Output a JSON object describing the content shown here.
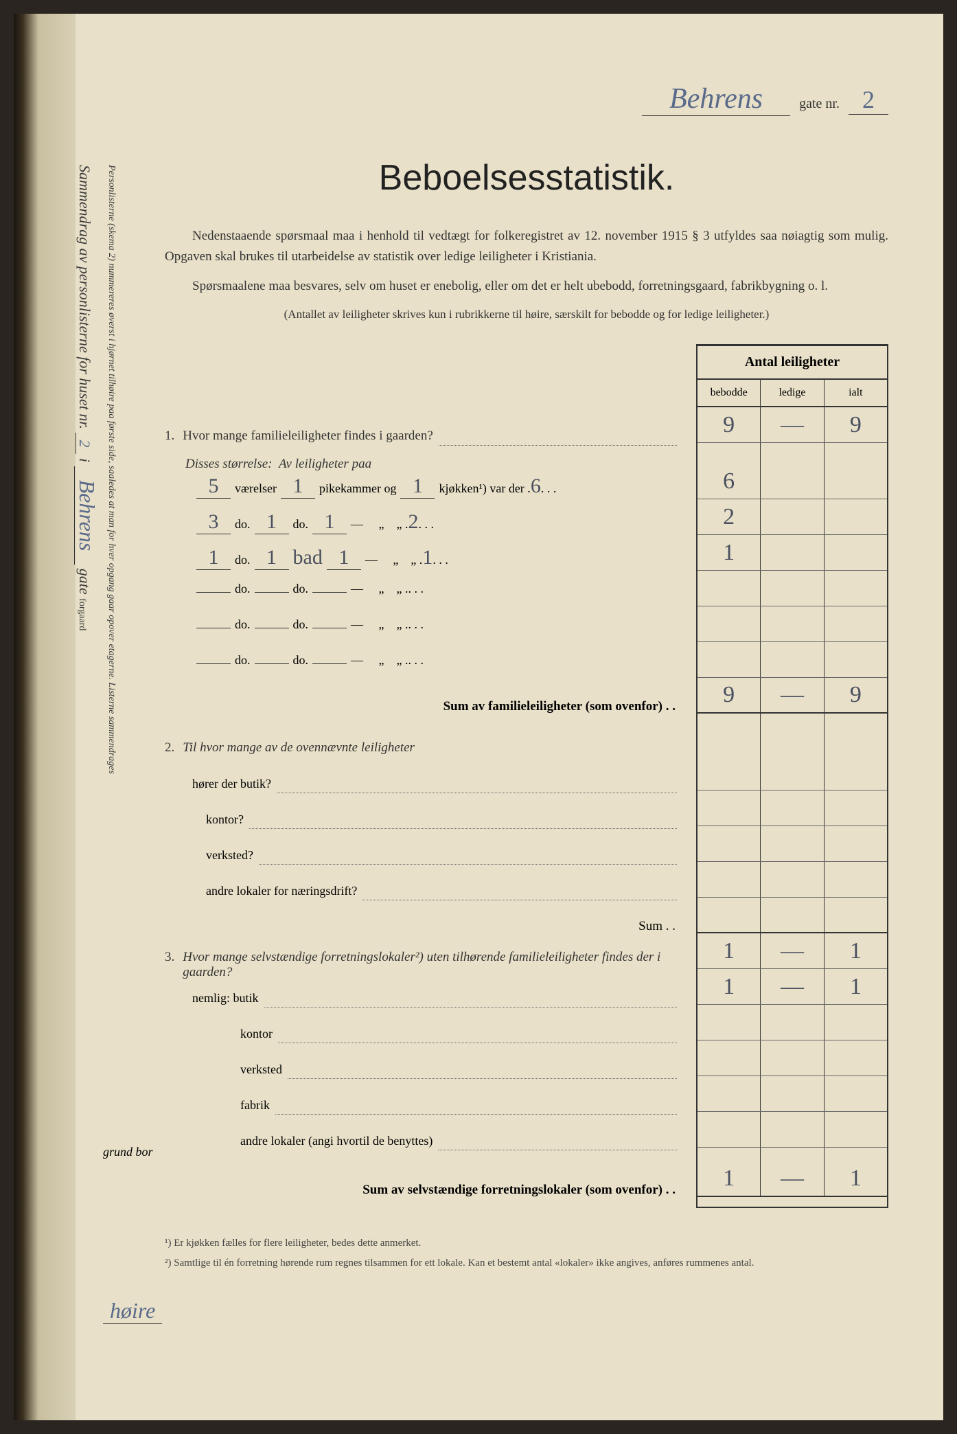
{
  "header": {
    "street_name": "Behrens",
    "gate_label": "gate nr.",
    "street_nr": "2"
  },
  "title": "Beboelsesstatistik.",
  "intro": {
    "p1": "Nedenstaaende spørsmaal maa i henhold til vedtægt for folkeregistret av 12. november 1915 § 3 utfyldes saa nøiagtig som mulig. Opgaven skal brukes til utarbeidelse av statistik over ledige leiligheter i Kristiania.",
    "p2": "Spørsmaalene maa besvares, selv om huset er enebolig, eller om det er helt ubebodd, forretningsgaard, fabrikbygning o. l.",
    "p3": "(Antallet av leiligheter skrives kun i rubrikkerne til høire, særskilt for bebodde og for ledige leiligheter.)"
  },
  "columns": {
    "header": "Antal leiligheter",
    "c1": "bebodde",
    "c2": "ledige",
    "c3": "ialt"
  },
  "q1": {
    "num": "1.",
    "text": "Hvor mange familieleiligheter findes i gaarden?",
    "answers": {
      "bebodde": "9",
      "ledige": "—",
      "ialt": "9"
    },
    "subhead": "Disses størrelse:",
    "subtext": "Av leiligheter paa",
    "rooms": [
      {
        "vaer": "5",
        "pike": "1",
        "kjok": "1",
        "count": "6",
        "bebodde": "6",
        "ledige": "",
        "ialt": ""
      },
      {
        "vaer": "3",
        "pike": "1",
        "kjok": "1",
        "count": "2",
        "bebodde": "2",
        "ledige": "",
        "ialt": ""
      },
      {
        "vaer": "1",
        "pike": "1",
        "kjok": "1",
        "count": "1",
        "bebodde": "1",
        "ledige": "",
        "ialt": "",
        "note": "bad"
      },
      {
        "vaer": "",
        "pike": "",
        "kjok": "",
        "count": "",
        "bebodde": "",
        "ledige": "",
        "ialt": ""
      },
      {
        "vaer": "",
        "pike": "",
        "kjok": "",
        "count": "",
        "bebodde": "",
        "ledige": "",
        "ialt": ""
      },
      {
        "vaer": "",
        "pike": "",
        "kjok": "",
        "count": "",
        "bebodde": "",
        "ledige": "",
        "ialt": ""
      }
    ],
    "labels": {
      "vaerelser": "værelser",
      "pikekammer": "pikekammer og",
      "kjokken": "kjøkken¹) var der",
      "do": "do."
    },
    "sum_label": "Sum av familieleiligheter (som ovenfor) . .",
    "sum": {
      "bebodde": "9",
      "ledige": "—",
      "ialt": "9"
    }
  },
  "q2": {
    "num": "2.",
    "text": "Til hvor mange av de ovennævnte leiligheter",
    "sub": [
      {
        "label": "hører der butik?",
        "bebodde": "",
        "ledige": "",
        "ialt": ""
      },
      {
        "label": "kontor?",
        "bebodde": "",
        "ledige": "",
        "ialt": ""
      },
      {
        "label": "verksted?",
        "bebodde": "",
        "ledige": "",
        "ialt": ""
      },
      {
        "label": "andre lokaler for næringsdrift?",
        "bebodde": "",
        "ledige": "",
        "ialt": ""
      }
    ],
    "sum_label": "Sum . .",
    "sum": {
      "bebodde": "",
      "ledige": "",
      "ialt": ""
    }
  },
  "q3": {
    "num": "3.",
    "text": "Hvor mange selvstændige forretningslokaler²) uten tilhørende familieleiligheter findes der i gaarden?",
    "answers": {
      "bebodde": "1",
      "ledige": "—",
      "ialt": "1"
    },
    "nemlig": "nemlig:",
    "sub": [
      {
        "label": "butik",
        "bebodde": "1",
        "ledige": "—",
        "ialt": "1"
      },
      {
        "label": "kontor",
        "bebodde": "",
        "ledige": "",
        "ialt": ""
      },
      {
        "label": "verksted",
        "bebodde": "",
        "ledige": "",
        "ialt": ""
      },
      {
        "label": "fabrik",
        "bebodde": "",
        "ledige": "",
        "ialt": ""
      },
      {
        "label": "andre lokaler (angi hvortil de benyttes)",
        "bebodde": "",
        "ledige": "",
        "ialt": ""
      }
    ],
    "sum_label": "Sum av selvstændige forretningslokaler (som ovenfor) . .",
    "sum": {
      "bebodde": "1",
      "ledige": "—",
      "ialt": "1"
    }
  },
  "footnotes": {
    "f1": "¹) Er kjøkken fælles for flere leiligheter, bedes dette anmerket.",
    "f2": "²) Samtlige til én forretning hørende rum regnes tilsammen for ett lokale. Kan et bestemt antal «lokaler» ikke angives, anføres rummenes antal."
  },
  "sidebar": {
    "line1_a": "Sammendrag av personlisterne for huset nr.",
    "line1_nr": "2",
    "line1_b": "i",
    "line1_street": "Behrens",
    "line1_c": "gate",
    "line1_d": "forgaard",
    "line2": "Personlisterne (skema 2) nummereres øverst i hjørnet tilhøire paa første side, saaledes at man for hver opgang gaar opover etagerne. Listerne sammendrages",
    "grund_bor": "grund bor",
    "hoire": "høire"
  }
}
